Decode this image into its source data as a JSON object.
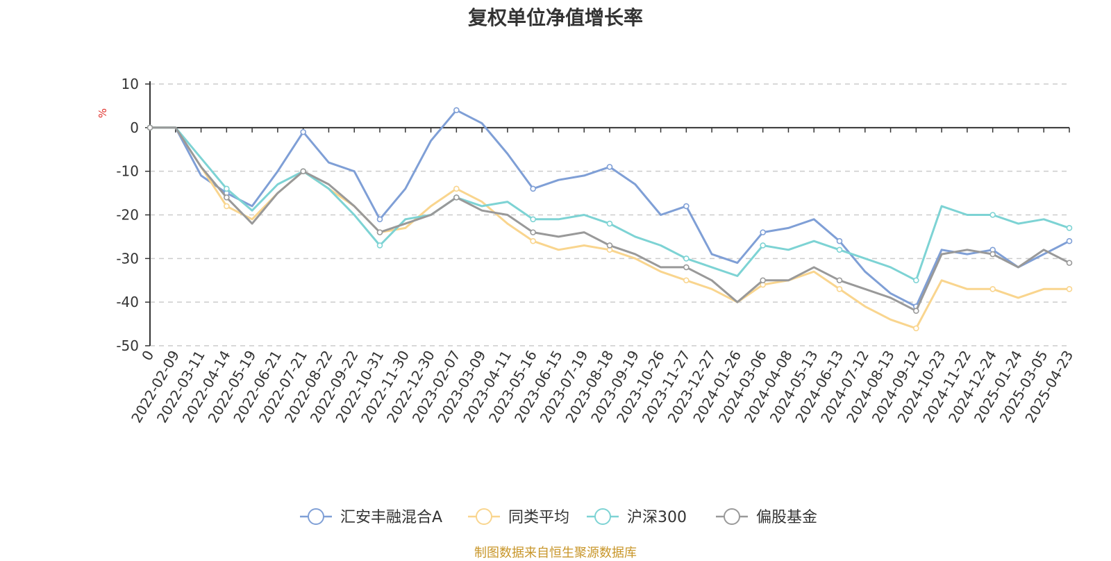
{
  "chart_data": {
    "type": "line",
    "title": "复权单位净值增长率",
    "ylabel": "%",
    "ylim": [
      -50,
      10
    ],
    "y_ticks": [
      "10",
      "0",
      "-10",
      "-20",
      "-30",
      "-40",
      "-50"
    ],
    "x_first_label": "0",
    "categories": [
      "2022-02-09",
      "2022-03-11",
      "2022-04-14",
      "2022-05-19",
      "2022-06-21",
      "2022-07-21",
      "2022-08-22",
      "2022-09-22",
      "2022-10-31",
      "2022-11-30",
      "2022-12-30",
      "2023-02-07",
      "2023-03-09",
      "2023-04-11",
      "2023-05-16",
      "2023-06-15",
      "2023-07-19",
      "2023-08-18",
      "2023-09-19",
      "2023-10-26",
      "2023-11-27",
      "2023-12-27",
      "2024-01-26",
      "2024-03-06",
      "2024-04-08",
      "2024-05-13",
      "2024-06-13",
      "2024-07-12",
      "2024-08-13",
      "2024-09-12",
      "2024-10-23",
      "2024-11-22",
      "2024-12-24",
      "2025-01-24",
      "2025-03-05",
      "2025-04-23"
    ],
    "series": [
      {
        "name": "汇安丰融混合A",
        "color": "#7f9fd6",
        "values": [
          0,
          -11,
          -15,
          -18,
          -10,
          -1,
          -8,
          -10,
          -21,
          -14,
          -3,
          4,
          1,
          -6,
          -14,
          -12,
          -11,
          -9,
          -13,
          -20,
          -18,
          -29,
          -31,
          -24,
          -23,
          -21,
          -26,
          -33,
          -38,
          -41,
          -28,
          -29,
          -28,
          -32,
          -29,
          -26
        ]
      },
      {
        "name": "同类平均",
        "color": "#f9d58e",
        "values": [
          0,
          -9,
          -18,
          -21,
          -15,
          -10,
          -14,
          -18,
          -24,
          -23,
          -18,
          -14,
          -17,
          -22,
          -26,
          -28,
          -27,
          -28,
          -30,
          -33,
          -35,
          -37,
          -40,
          -36,
          -35,
          -33,
          -37,
          -41,
          -44,
          -46,
          -35,
          -37,
          -37,
          -39,
          -37,
          -37
        ]
      },
      {
        "name": "沪深300",
        "color": "#7dd3d4",
        "values": [
          0,
          -7,
          -14,
          -19,
          -13,
          -10,
          -14,
          -20,
          -27,
          -21,
          -20,
          -16,
          -18,
          -17,
          -21,
          -21,
          -20,
          -22,
          -25,
          -27,
          -30,
          -32,
          -34,
          -27,
          -28,
          -26,
          -28,
          -30,
          -32,
          -35,
          -18,
          -20,
          -20,
          -22,
          -21,
          -23
        ]
      },
      {
        "name": "偏股基金",
        "color": "#999999",
        "values": [
          0,
          -9,
          -16,
          -22,
          -15,
          -10,
          -13,
          -18,
          -24,
          -22,
          -20,
          -16,
          -19,
          -20,
          -24,
          -25,
          -24,
          -27,
          -29,
          -32,
          -32,
          -35,
          -40,
          -35,
          -35,
          -32,
          -35,
          -37,
          -39,
          -42,
          -29,
          -28,
          -29,
          -32,
          -28,
          -31
        ]
      }
    ],
    "legend_position": "bottom",
    "grid": true
  },
  "source_note": {
    "text": "制图数据来自恒生聚源数据库",
    "color": "#c8962a"
  },
  "unit_color": "#e0302a"
}
